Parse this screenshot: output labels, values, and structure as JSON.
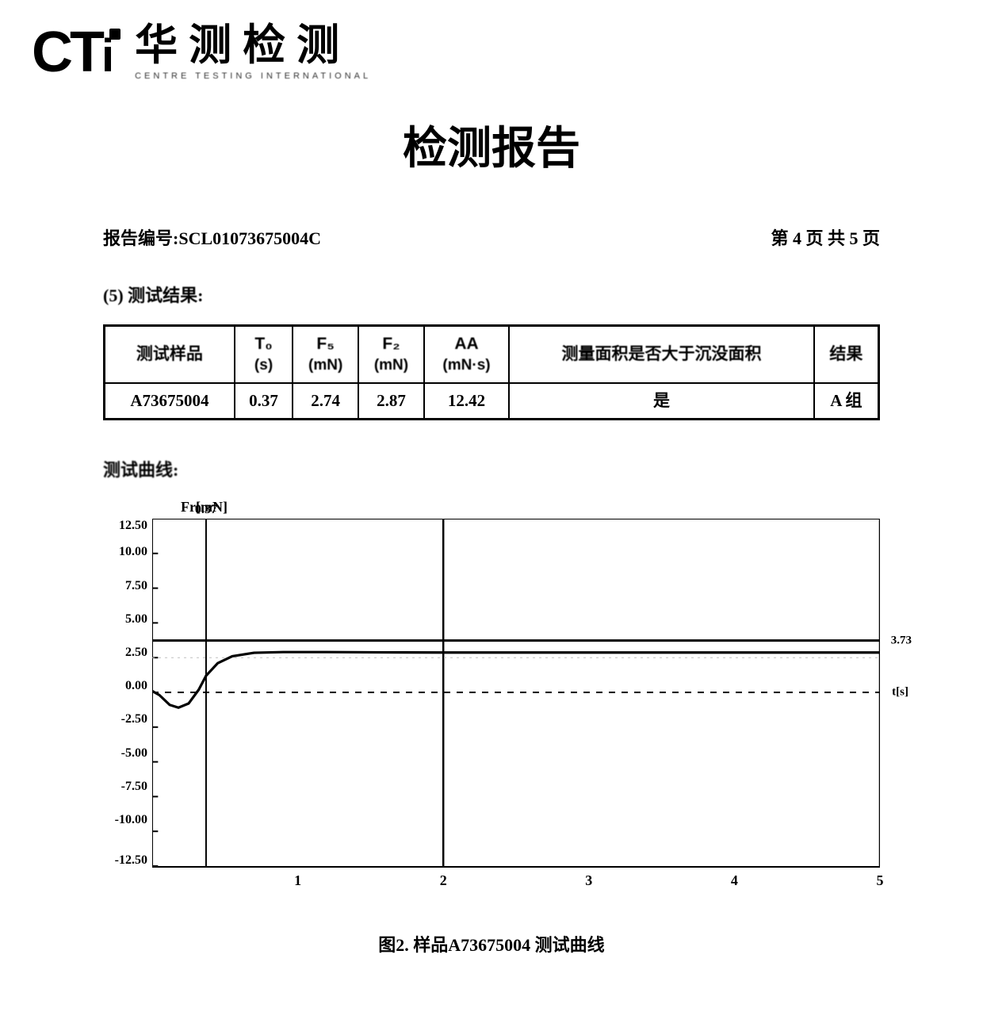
{
  "logo": {
    "en": "CTi",
    "cn": "华测检测",
    "sub": "CENTRE TESTING INTERNATIONAL"
  },
  "title": "检测报告",
  "report": {
    "number_label": "报告编号:",
    "number": "SCL01073675004C",
    "page_info": "第 4 页  共 5 页",
    "section_label": "(5) 测试结果:",
    "curve_label": "测试曲线:",
    "caption": "图2. 样品A73675004 测试曲线"
  },
  "table": {
    "headers": {
      "sample": "测试样品",
      "t0": "T₀",
      "t0_unit": "(s)",
      "fs": "F₅",
      "fs_unit": "(mN)",
      "f2": "F₂",
      "f2_unit": "(mN)",
      "aa": "AA",
      "aa_unit": "(mN·s)",
      "area_check": "测量面积是否大于沉没面积",
      "result": "结果"
    },
    "row": {
      "sample": "A73675004",
      "t0": "0.37",
      "fs": "2.74",
      "f2": "2.87",
      "aa": "12.42",
      "area_check": "是",
      "result": "A 组"
    }
  },
  "chart": {
    "type": "line",
    "y_title": "Fr[mN]",
    "x_unit_label": "t[s]",
    "ylim": [
      -12.5,
      12.5
    ],
    "xlim": [
      0,
      5
    ],
    "y_ticks": [
      "12.50",
      "10.00",
      "7.50",
      "5.00",
      "2.50",
      "0.00",
      "-2.50",
      "-5.00",
      "-7.50",
      "-10.00",
      "-12.50"
    ],
    "x_ticks": [
      "1",
      "2",
      "3",
      "4",
      "5"
    ],
    "vline": {
      "x": 0.37,
      "label": "0.37"
    },
    "hline": {
      "y": 3.73,
      "label": "3.73"
    },
    "zero_line_y": 0,
    "major_grid_x": [
      2,
      5
    ],
    "data_points": [
      [
        0.0,
        0.1
      ],
      [
        0.05,
        -0.2
      ],
      [
        0.12,
        -0.9
      ],
      [
        0.18,
        -1.1
      ],
      [
        0.25,
        -0.8
      ],
      [
        0.32,
        0.2
      ],
      [
        0.37,
        1.2
      ],
      [
        0.45,
        2.1
      ],
      [
        0.55,
        2.6
      ],
      [
        0.7,
        2.85
      ],
      [
        0.9,
        2.9
      ],
      [
        1.2,
        2.9
      ],
      [
        1.6,
        2.88
      ],
      [
        2.0,
        2.87
      ],
      [
        2.5,
        2.87
      ],
      [
        3.0,
        2.87
      ],
      [
        3.5,
        2.87
      ],
      [
        4.0,
        2.87
      ],
      [
        4.5,
        2.87
      ],
      [
        5.0,
        2.87
      ]
    ],
    "colors": {
      "background": "#ffffff",
      "axis": "#000000",
      "grid_minor": "#bfbfbf",
      "line": "#000000",
      "hline": "#000000",
      "vline": "#000000",
      "zero_dash": "#000000"
    },
    "styles": {
      "line_width": 3.2,
      "grid_width": 1,
      "hline_width": 3,
      "vline_width": 2,
      "tick_fontsize": 16,
      "title_fontsize": 18
    }
  }
}
